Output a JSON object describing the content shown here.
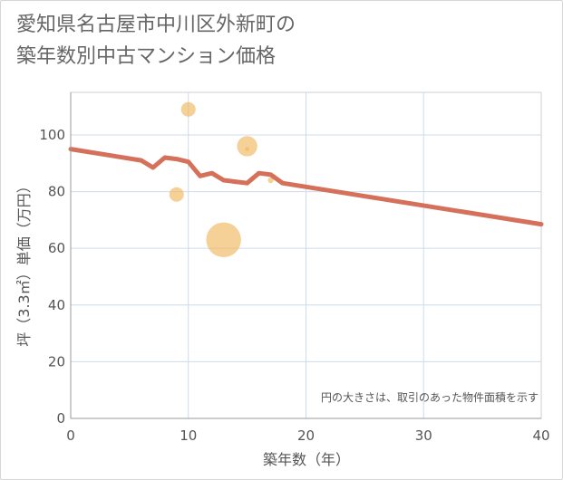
{
  "title_lines": [
    "愛知県名古屋市中川区外新町の",
    "築年数別中古マンション価格"
  ],
  "chart_data": {
    "type": "scatter",
    "title": "愛知県名古屋市中川区外新町の築年数別中古マンション価格",
    "xlabel": "築年数（年）",
    "ylabel": "坪（3.3㎡）単価（万円）",
    "xlim": [
      0,
      40
    ],
    "ylim": [
      0,
      115
    ],
    "xticks": [
      0,
      10,
      20,
      30,
      40
    ],
    "yticks": [
      0,
      20,
      40,
      60,
      80,
      100
    ],
    "grid": true,
    "note": "円の大きさは、取引のあった物件面積を示す",
    "bubble_color": "#f0b75f",
    "line_color": "#d5705a",
    "bubbles": [
      {
        "x": 9,
        "y": 79,
        "size": 1.0
      },
      {
        "x": 10,
        "y": 109,
        "size": 1.0
      },
      {
        "x": 13,
        "y": 63,
        "size": 2.4
      },
      {
        "x": 15,
        "y": 96,
        "size": 1.4
      },
      {
        "x": 15,
        "y": 95,
        "size": 0.3
      },
      {
        "x": 17,
        "y": 84,
        "size": 0.4
      },
      {
        "x": 18,
        "y": 83,
        "size": 0.3
      }
    ],
    "trend_line": {
      "name": "trend",
      "x": [
        0,
        6,
        7,
        8,
        9,
        10,
        11,
        12,
        13,
        14,
        15,
        16,
        17,
        18,
        40
      ],
      "y": [
        95,
        91,
        88.5,
        92,
        91.5,
        90.5,
        85.5,
        86.5,
        84,
        83.5,
        83,
        86.5,
        86,
        83,
        68.5
      ]
    }
  }
}
